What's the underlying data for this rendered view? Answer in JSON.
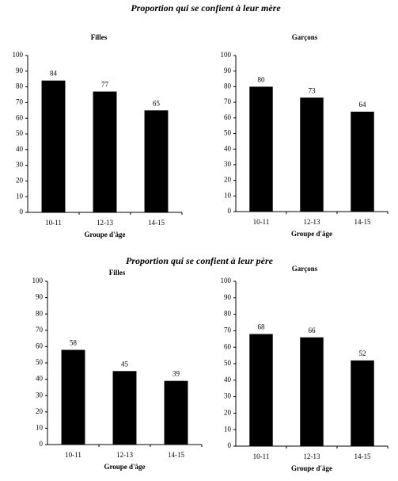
{
  "headings": [
    "Proportion qui se confient à leur mère",
    "Proportion qui se confient à leur père"
  ],
  "chart_data": [
    {
      "type": "bar",
      "title": "Filles",
      "xlabel": "Groupe d'âge",
      "categories": [
        "10-11",
        "12-13",
        "14-15"
      ],
      "values": [
        84,
        77,
        65
      ],
      "color": "#000000",
      "ylim": [
        0,
        100
      ],
      "yticks": [
        0,
        10,
        20,
        30,
        40,
        50,
        60,
        70,
        80,
        90,
        100
      ]
    },
    {
      "type": "bar",
      "title": "Garçons",
      "xlabel": "Groupe d'âge",
      "categories": [
        "10-11",
        "12-13",
        "14-15"
      ],
      "values": [
        80,
        73,
        64
      ],
      "color": "#000000",
      "ylim": [
        0,
        100
      ],
      "yticks": [
        0,
        10,
        20,
        30,
        40,
        50,
        60,
        70,
        80,
        90,
        100
      ]
    },
    {
      "type": "bar",
      "title": "Filles",
      "xlabel": "Groupe d'âge",
      "categories": [
        "10-11",
        "12-13",
        "14-15"
      ],
      "values": [
        58,
        45,
        39
      ],
      "color": "#000000",
      "ylim": [
        0,
        100
      ],
      "yticks": [
        0,
        10,
        20,
        30,
        40,
        50,
        60,
        70,
        80,
        90,
        100
      ]
    },
    {
      "type": "bar",
      "title": "Garçons",
      "xlabel": "Groupe d'âge",
      "categories": [
        "10-11",
        "12-13",
        "14-15"
      ],
      "values": [
        68,
        66,
        52
      ],
      "color": "#000000",
      "ylim": [
        0,
        100
      ],
      "yticks": [
        0,
        10,
        20,
        30,
        40,
        50,
        60,
        70,
        80,
        90,
        100
      ]
    }
  ]
}
